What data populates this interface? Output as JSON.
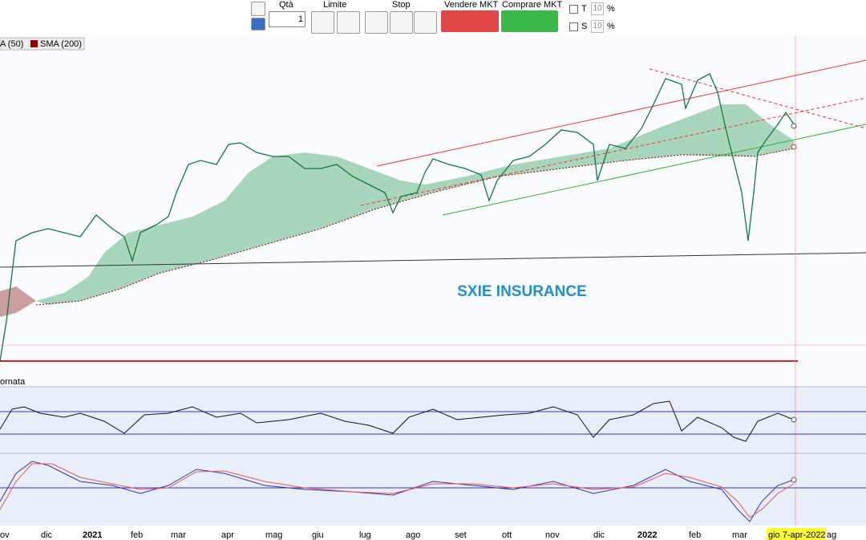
{
  "toolbar": {
    "qty_label": "Qtà",
    "qty_value": "1",
    "limit_label": "Limite",
    "stop_label": "Stop",
    "sell_label": "Vendere MKT",
    "buy_label": "Comprare MKT",
    "t_label": "T",
    "t_value": "10",
    "t_unit": "%",
    "s_label": "S",
    "s_value": "10",
    "s_unit": "%"
  },
  "legend": {
    "sma50": "A (50)",
    "sma200": "SMA (200)"
  },
  "chart": {
    "title": "SXIE INSURANCE",
    "panel_label": "ornata",
    "months": [
      "ov",
      "dic",
      "2021",
      "feb",
      "mar",
      "apr",
      "mag",
      "giu",
      "lug",
      "ago",
      "set",
      "ott",
      "nov",
      "dic",
      "2022",
      "feb",
      "mar",
      "ag"
    ],
    "cursor_date": "gio 7-apr-2022"
  }
}
